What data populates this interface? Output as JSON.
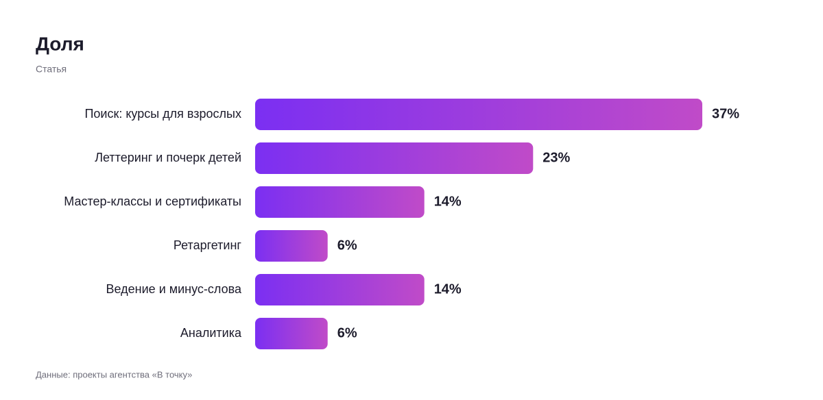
{
  "chart_data": {
    "type": "bar",
    "orientation": "horizontal",
    "title": "Доля",
    "subtitle": "Статья",
    "categories": [
      "Поиск: курсы для взрослых",
      "Леттеринг и почерк детей",
      "Мастер-классы и сертификаты",
      "Ретаргетинг",
      "Ведение и минус-слова",
      "Аналитика"
    ],
    "values": [
      37,
      23,
      14,
      6,
      14,
      6
    ],
    "value_labels": [
      "37%",
      "23%",
      "14%",
      "6%",
      "14%",
      "6%"
    ],
    "gradient": [
      "#7b2ff2",
      "#c04bc8"
    ],
    "note": "Данные: проекты агентства «В точку»"
  }
}
